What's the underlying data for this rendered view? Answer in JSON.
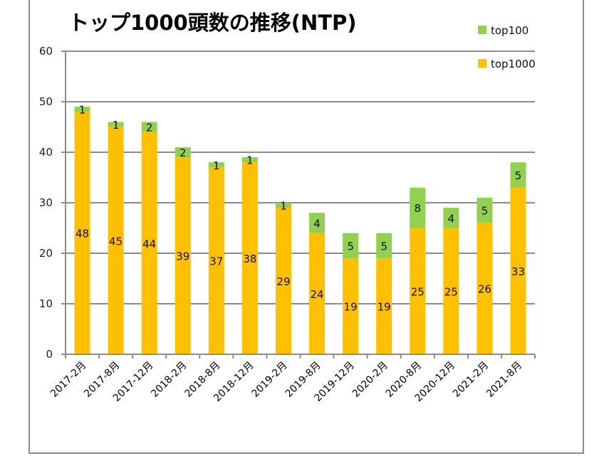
{
  "chart_data": {
    "type": "bar",
    "stacked": true,
    "title": "トップ1000頭数の推移(NTP)",
    "xlabel": "",
    "ylabel": "",
    "ylim": [
      0,
      60
    ],
    "yticks": [
      0,
      10,
      20,
      30,
      40,
      50,
      60
    ],
    "grid": true,
    "legend_position": "top-right",
    "categories": [
      "2017-2月",
      "2017-8月",
      "2017-12月",
      "2018-2月",
      "2018-8月",
      "2018-12月",
      "2019-2月",
      "2019-8月",
      "2019-12月",
      "2020-2月",
      "2020-8月",
      "2020-12月",
      "2021-2月",
      "2021-8月"
    ],
    "series": [
      {
        "name": "top1000",
        "color": "#FFC000",
        "values": [
          48,
          45,
          44,
          39,
          37,
          38,
          29,
          24,
          19,
          19,
          25,
          25,
          26,
          33
        ]
      },
      {
        "name": "top100",
        "color": "#92D050",
        "values": [
          1,
          1,
          2,
          2,
          1,
          1,
          1,
          4,
          5,
          5,
          8,
          4,
          5,
          5
        ]
      }
    ],
    "legend": [
      {
        "name": "top100",
        "color": "#92D050"
      },
      {
        "name": "top1000",
        "color": "#FFC000"
      }
    ]
  }
}
